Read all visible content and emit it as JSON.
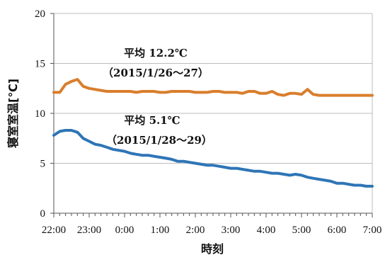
{
  "chart_data": {
    "type": "line",
    "xlabel": "時刻",
    "ylabel": "寝室室温[℃]",
    "ylim": [
      0,
      20
    ],
    "yticks": [
      "0",
      "5",
      "10",
      "15",
      "20"
    ],
    "xticks": [
      "22:00",
      "23:00",
      "0:00",
      "1:00",
      "2:00",
      "3:00",
      "4:00",
      "5:00",
      "6:00",
      "7:00"
    ],
    "grid": true,
    "x_hours": [
      0,
      0.17,
      0.33,
      0.5,
      0.67,
      0.83,
      1.0,
      1.17,
      1.33,
      1.5,
      1.67,
      1.83,
      2.0,
      2.17,
      2.33,
      2.5,
      2.67,
      2.83,
      3.0,
      3.17,
      3.33,
      3.5,
      3.67,
      3.83,
      4.0,
      4.17,
      4.33,
      4.5,
      4.67,
      4.83,
      5.0,
      5.17,
      5.33,
      5.5,
      5.67,
      5.83,
      6.0,
      6.17,
      6.33,
      6.5,
      6.67,
      6.83,
      7.0,
      7.17,
      7.33,
      7.5,
      7.67,
      7.83,
      8.0,
      8.17,
      8.33,
      8.5,
      8.67,
      8.83,
      9.0
    ],
    "series": [
      {
        "color": "#D97E2C",
        "values": [
          12.1,
          12.1,
          12.9,
          13.2,
          13.4,
          12.7,
          12.5,
          12.4,
          12.3,
          12.2,
          12.2,
          12.2,
          12.2,
          12.2,
          12.1,
          12.2,
          12.2,
          12.2,
          12.1,
          12.1,
          12.2,
          12.2,
          12.2,
          12.2,
          12.1,
          12.1,
          12.1,
          12.2,
          12.2,
          12.1,
          12.1,
          12.1,
          12.0,
          12.2,
          12.2,
          12.0,
          12.0,
          12.2,
          11.9,
          11.8,
          12.0,
          12.0,
          11.9,
          12.4,
          11.9,
          11.8,
          11.8,
          11.8,
          11.8,
          11.8,
          11.8,
          11.8,
          11.8,
          11.8,
          11.8
        ]
      },
      {
        "color": "#2E75B6",
        "values": [
          7.8,
          8.2,
          8.3,
          8.3,
          8.1,
          7.5,
          7.2,
          6.9,
          6.8,
          6.6,
          6.4,
          6.3,
          6.2,
          6.0,
          5.9,
          5.8,
          5.8,
          5.7,
          5.6,
          5.5,
          5.4,
          5.2,
          5.2,
          5.1,
          5.0,
          4.9,
          4.8,
          4.8,
          4.7,
          4.6,
          4.5,
          4.5,
          4.4,
          4.3,
          4.2,
          4.2,
          4.1,
          4.0,
          4.0,
          3.9,
          3.8,
          3.9,
          3.8,
          3.6,
          3.5,
          3.4,
          3.3,
          3.2,
          3.0,
          3.0,
          2.9,
          2.8,
          2.8,
          2.7,
          2.7
        ]
      }
    ],
    "annotations": [
      {
        "line1": "平均 12.2℃",
        "line2": "（2015/1/26～27）"
      },
      {
        "line1": "平均  5.1℃",
        "line2": "（2015/1/28～29）"
      }
    ]
  }
}
